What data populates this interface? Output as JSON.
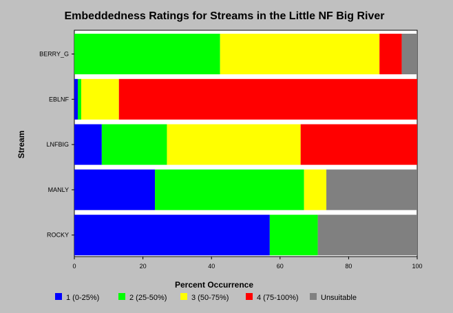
{
  "chart_data": {
    "type": "bar",
    "orientation": "horizontal",
    "stacked": true,
    "title": "Embeddedness Ratings for Streams in the Little NF Big River",
    "xlabel": "Percent Occurrence",
    "ylabel": "Stream",
    "xlim": [
      0,
      100
    ],
    "xticks": [
      "0",
      "20",
      "40",
      "60",
      "80",
      "100"
    ],
    "categories": [
      "BERRY_G",
      "EBLNF",
      "LNFBIG",
      "MANLY",
      "ROCKY"
    ],
    "grid": false,
    "legend_position": "bottom",
    "series": [
      {
        "name": "1   (0-25%)",
        "color": "#0000ff",
        "values": [
          0,
          1,
          8,
          23.5,
          57
        ]
      },
      {
        "name": "2  (25-50%)",
        "color": "#00ff00",
        "values": [
          42.5,
          1,
          19,
          43.5,
          14
        ]
      },
      {
        "name": "3  (50-75%)",
        "color": "#ffff00",
        "values": [
          46.5,
          11,
          39,
          6.5,
          0
        ]
      },
      {
        "name": "4 (75-100%)",
        "color": "#ff0000",
        "values": [
          6.5,
          87,
          34,
          0,
          0
        ]
      },
      {
        "name": "Unsuitable",
        "color": "#808080",
        "values": [
          4.5,
          0,
          0,
          26.5,
          29
        ]
      }
    ]
  }
}
